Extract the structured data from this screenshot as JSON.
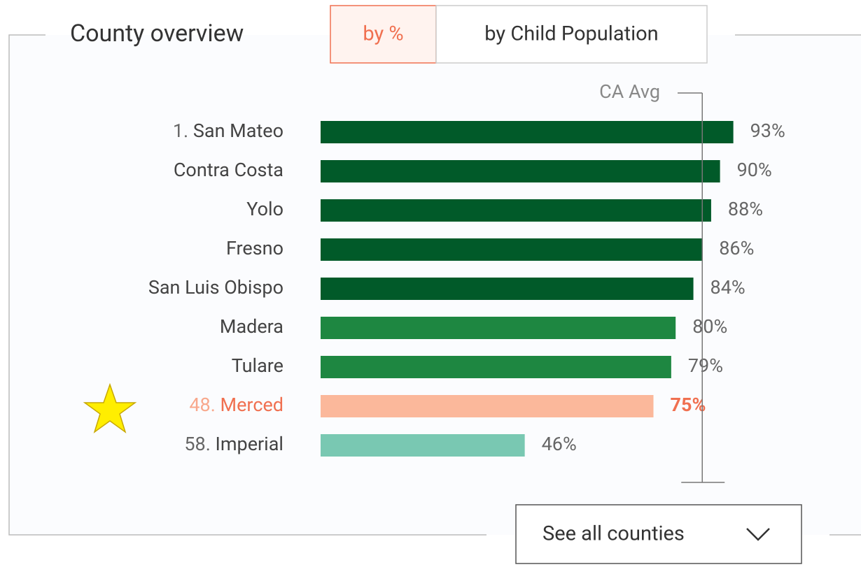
{
  "header": {
    "title": "County overview",
    "tabs": [
      "by %",
      "by Child Population"
    ],
    "active_tab": 0
  },
  "chart_data": {
    "type": "bar",
    "orientation": "horizontal",
    "ranks": [
      "1.",
      null,
      null,
      null,
      null,
      null,
      null,
      "48.",
      "58."
    ],
    "categories": [
      "San Mateo",
      "Contra Costa",
      "Yolo",
      "Fresno",
      "San Luis Obispo",
      "Madera",
      "Tulare",
      "Merced",
      "Imperial"
    ],
    "values": [
      93,
      90,
      88,
      86,
      84,
      80,
      79,
      75,
      46
    ],
    "value_labels": [
      "93%",
      "90%",
      "88%",
      "86%",
      "84%",
      "80%",
      "79%",
      "75%",
      "46%"
    ],
    "colors": [
      "#015a29",
      "#015a29",
      "#015a29",
      "#015a29",
      "#015a29",
      "#1e8741",
      "#1e8741",
      "#fbb89b",
      "#79c8b2"
    ],
    "highlight_index": 7,
    "highlight_color": "#f07050",
    "xlim": [
      0,
      100
    ],
    "reference": {
      "label": "CA Avg",
      "value": 86
    }
  },
  "footer": {
    "button": "See all counties"
  }
}
